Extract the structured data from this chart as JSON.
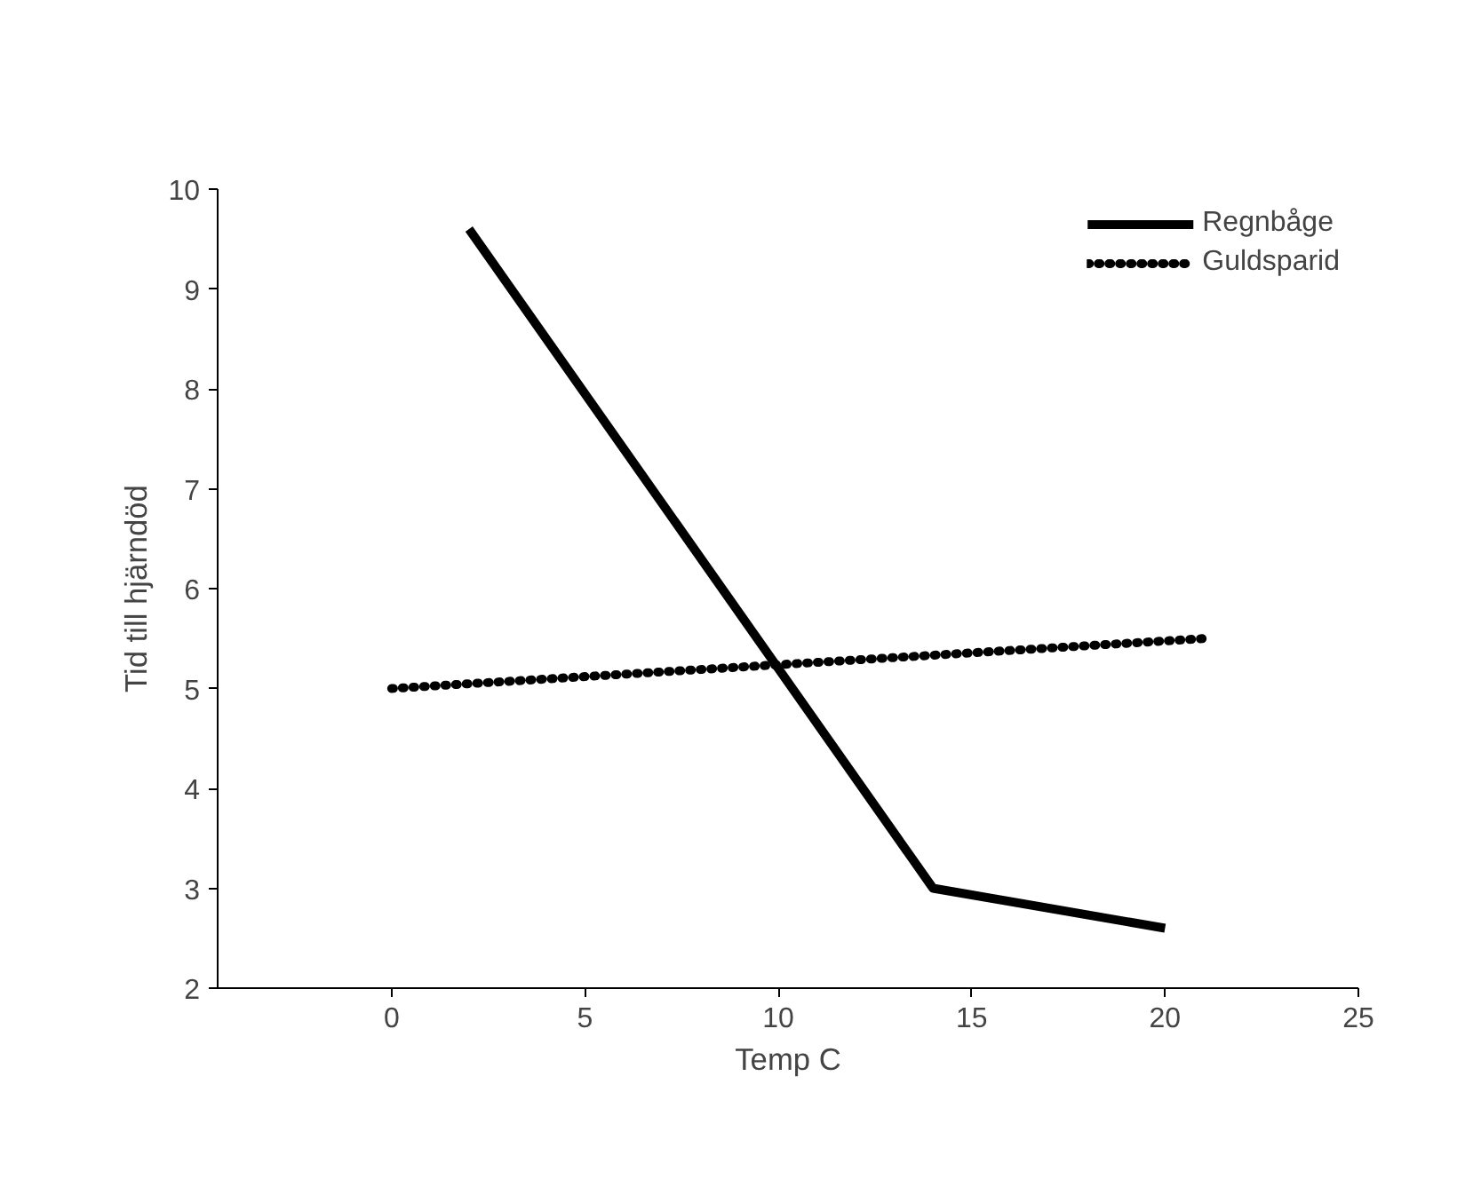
{
  "chart_data": {
    "type": "line",
    "xlabel": "Temp C",
    "ylabel": "Tid till hjärndöd",
    "xlim": [
      -4.5,
      25
    ],
    "xticks": [
      0,
      5,
      10,
      15,
      20,
      25
    ],
    "ylim": [
      2,
      10
    ],
    "yticks": [
      2,
      3,
      4,
      5,
      6,
      7,
      8,
      9,
      10
    ],
    "grid": false,
    "legend": "top right",
    "marker": "none",
    "series": [
      {
        "name": "Regnbåge",
        "color": "#000000",
        "line_style": "solid",
        "x": [
          2,
          14,
          20
        ],
        "values": [
          9.6,
          3.0,
          2.6
        ]
      },
      {
        "name": "Guldsparid",
        "color": "#000000",
        "line_style": "dotted",
        "x": [
          0,
          21
        ],
        "values": [
          5.0,
          5.5
        ]
      }
    ]
  }
}
